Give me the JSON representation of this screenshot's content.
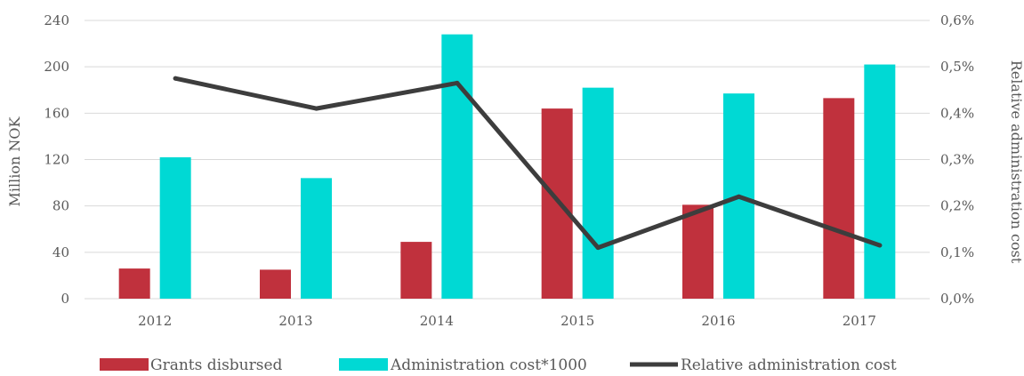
{
  "chart_data": {
    "type": "bar",
    "categories": [
      "2012",
      "2013",
      "2014",
      "2015",
      "2016",
      "2017"
    ],
    "series": [
      {
        "name": "Grants disbursed",
        "type": "bar",
        "axis": "left",
        "values": [
          26,
          25,
          49,
          164,
          81,
          173
        ]
      },
      {
        "name": "Administration cost*1000",
        "type": "bar",
        "axis": "left",
        "values": [
          122,
          104,
          228,
          182,
          177,
          202
        ]
      },
      {
        "name": "Relative administration cost",
        "type": "line",
        "axis": "right",
        "values": [
          0.00475,
          0.0041,
          0.00465,
          0.0011,
          0.0022,
          0.00115
        ]
      }
    ],
    "ylabel": "Million NOK",
    "ylabel_right": "Relative administration cost",
    "ylim": [
      0,
      240
    ],
    "ylim_right": [
      0,
      0.006
    ],
    "yticks": [
      "0",
      "40",
      "80",
      "120",
      "160",
      "200",
      "240"
    ],
    "yticks_right": [
      "0,0%",
      "0,1%",
      "0,2%",
      "0,3%",
      "0,4%",
      "0,5%",
      "0,6%"
    ],
    "grid": true,
    "legend_position": "bottom",
    "colors": {
      "grants": "#c0313d",
      "admin": "#00d9d4",
      "relative": "#3d3d3d",
      "grid": "#d9d9d9"
    }
  }
}
